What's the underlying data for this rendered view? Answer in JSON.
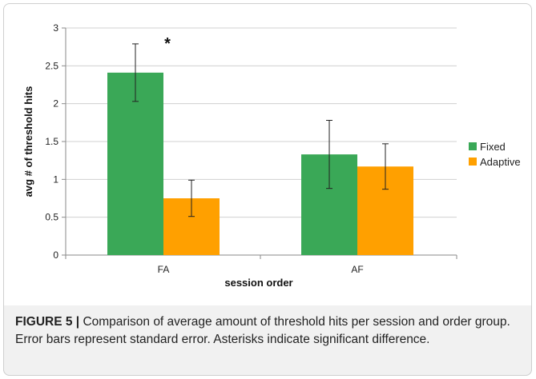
{
  "chart_data": {
    "type": "bar",
    "title": "",
    "xlabel": "session order",
    "ylabel": "avg # of threshold hits",
    "ylim": [
      0,
      3
    ],
    "yticks": [
      "0",
      "0.5",
      "1",
      "1.5",
      "2",
      "2.5",
      "3"
    ],
    "ytick_values": [
      0,
      0.5,
      1,
      1.5,
      2,
      2.5,
      3
    ],
    "grid": true,
    "legend_position": "right",
    "categories": [
      "FA",
      "AF"
    ],
    "series": [
      {
        "name": "Fixed",
        "color": "#3aa857",
        "values": [
          2.41,
          1.33
        ],
        "error": [
          0.38,
          0.45
        ]
      },
      {
        "name": "Adaptive",
        "color": "#ffa000",
        "values": [
          0.75,
          1.17
        ],
        "error": [
          0.24,
          0.3
        ]
      }
    ],
    "annotations": [
      {
        "text": "*",
        "category": "FA",
        "y": 2.85
      }
    ]
  },
  "caption": {
    "label": "FIGURE 5 |",
    "text": " Comparison of average amount of threshold hits per session and order group. Error bars represent standard error. Asterisks indicate significant difference."
  }
}
